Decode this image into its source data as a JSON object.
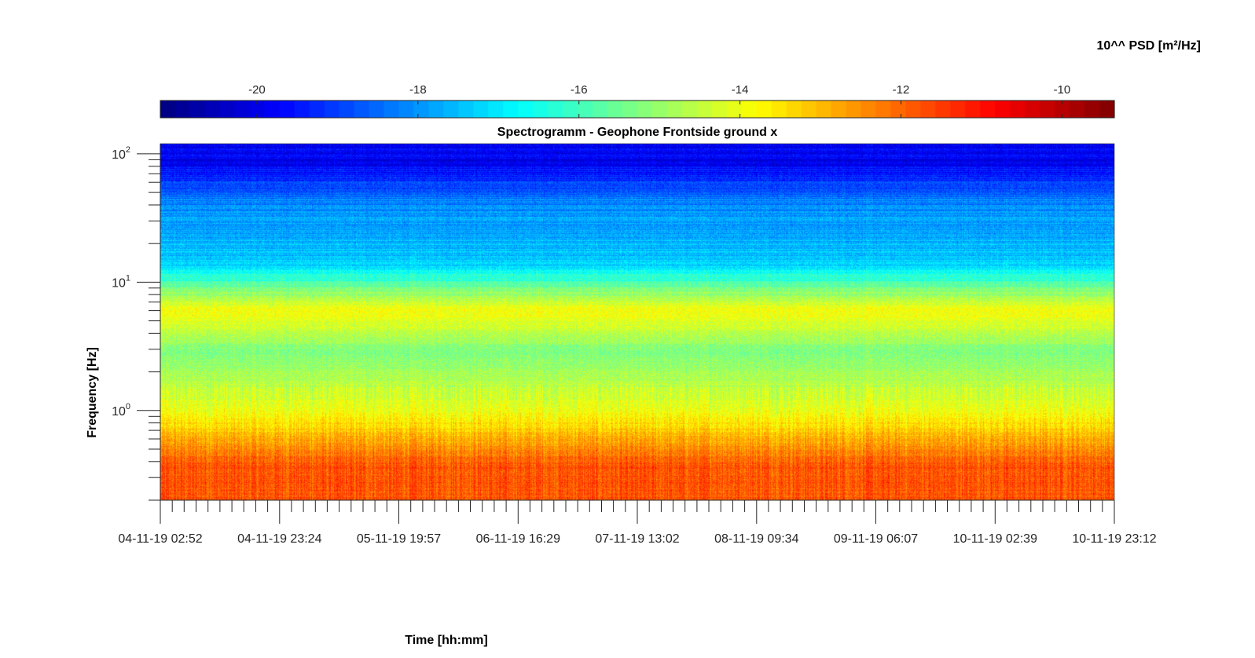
{
  "chart_data": {
    "type": "heatmap",
    "title": "Spectrogramm - Geophone Frontside ground x",
    "xlabel": "Time [hh:mm]",
    "ylabel": "Frequency [Hz]",
    "colorbar_label": "10^^ PSD [m²/Hz]",
    "colormap": "jet",
    "y_scale": "log",
    "ylim": [
      0.2,
      120
    ],
    "clim": [
      -21.2,
      -9.35
    ],
    "x_tick_labels": [
      "04-11-19 02:52",
      "04-11-19 23:24",
      "05-11-19 19:57",
      "06-11-19 16:29",
      "07-11-19 13:02",
      "08-11-19 09:34",
      "09-11-19 06:07",
      "10-11-19 02:39",
      "10-11-19 23:12"
    ],
    "y_ticks": [
      {
        "base": "10",
        "exp": "2",
        "value": 100
      },
      {
        "base": "10",
        "exp": "1",
        "value": 10
      },
      {
        "base": "10",
        "exp": "0",
        "value": 1
      }
    ],
    "colorbar_ticks": [
      "-20",
      "-18",
      "-16",
      "-14",
      "-12",
      "-10"
    ],
    "colorbar_tick_values": [
      -20,
      -18,
      -16,
      -14,
      -12,
      -10
    ],
    "colorbar_location": "top",
    "grid": false,
    "psd_bands": [
      {
        "f_low": 0.2,
        "f_high": 0.7,
        "level": -11.8
      },
      {
        "f_low": 0.7,
        "f_high": 1.5,
        "level": -14.0
      },
      {
        "f_low": 1.5,
        "f_high": 5.5,
        "level": -15.3
      },
      {
        "f_low": 5.8,
        "f_high": 6.3,
        "level": -13.8
      },
      {
        "f_low": 6.5,
        "f_high": 30,
        "level": -17.3
      },
      {
        "f_low": 30,
        "f_high": 60,
        "level": -18.2
      },
      {
        "f_low": 60,
        "f_high": 120,
        "level": -19.8
      }
    ]
  }
}
